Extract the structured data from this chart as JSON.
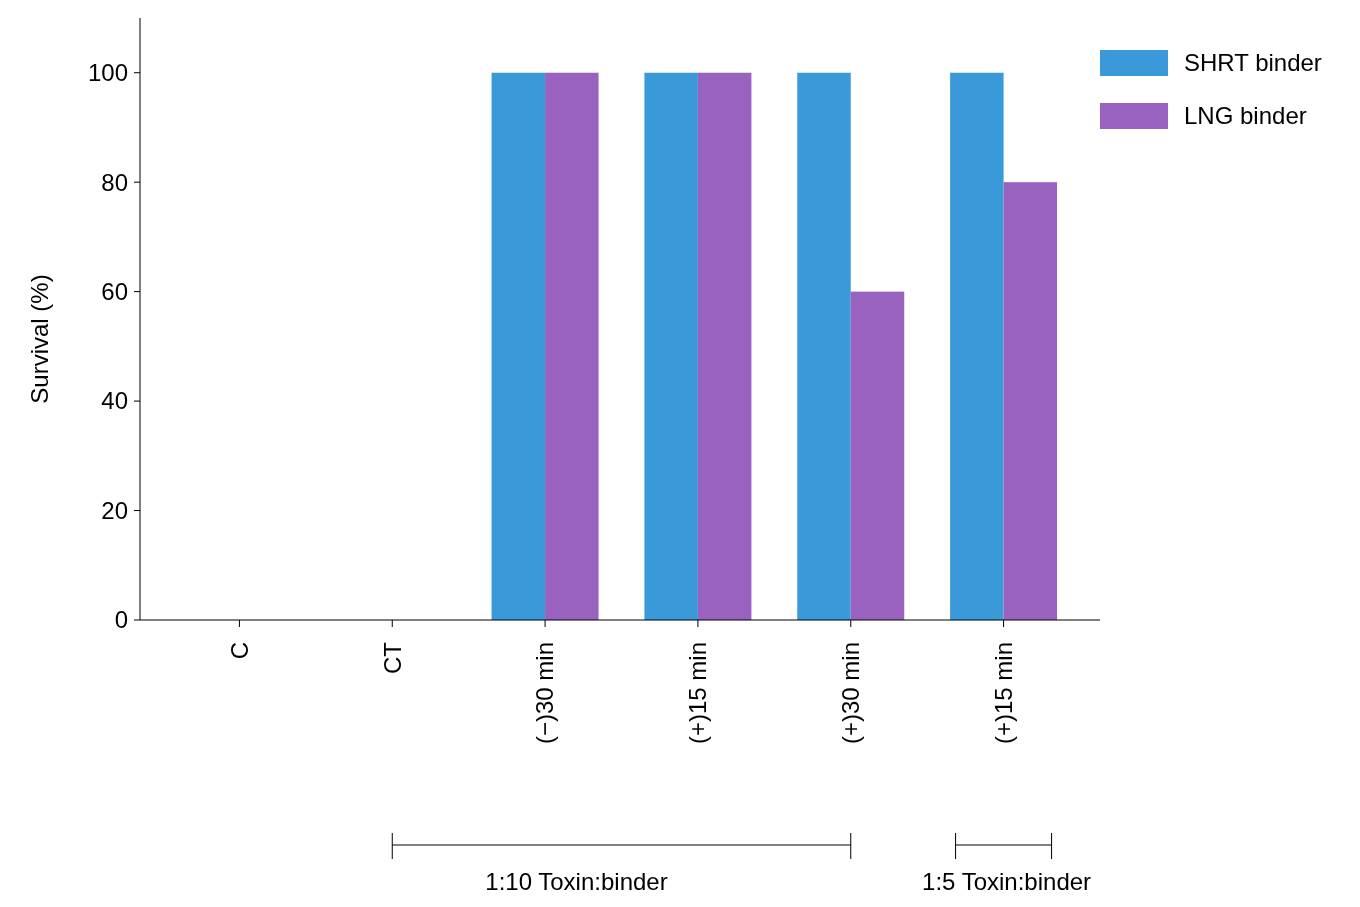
{
  "chart_data": {
    "type": "bar",
    "ylabel": "Survival (%)",
    "categories": [
      "C",
      "CT",
      "(−)30 min",
      "(+)15 min",
      "(+)30 min",
      "(+)15 min"
    ],
    "series": [
      {
        "name": "SHRT binder",
        "color": "#3a9ad9",
        "values": [
          0,
          0,
          100,
          100,
          100,
          100
        ]
      },
      {
        "name": "LNG binder",
        "color": "#9a62bf",
        "values": [
          0,
          0,
          100,
          100,
          60,
          80
        ]
      }
    ],
    "ylim": [
      0,
      110
    ],
    "yticks": [
      0,
      20,
      40,
      60,
      80,
      100
    ],
    "grid": false,
    "legend": "top right",
    "annotations": [
      "1:10 Toxin:binder",
      "1:5 Toxin:binder"
    ]
  }
}
